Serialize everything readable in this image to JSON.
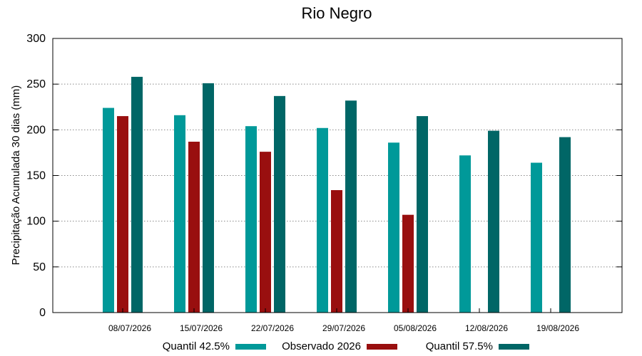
{
  "chart_data": {
    "type": "bar",
    "title": "Rio Negro",
    "xlabel": "",
    "ylabel": "Precipitação Acumulada 30 dias (mm)",
    "ylim": [
      0,
      300
    ],
    "yticks": [
      "0",
      "50",
      "100",
      "150",
      "200",
      "250",
      "300"
    ],
    "categories": [
      "08/07/2026",
      "15/07/2026",
      "22/07/2026",
      "29/07/2026",
      "05/08/2026",
      "12/08/2026",
      "19/08/2026"
    ],
    "grid": "y-dotted",
    "legend_position": "bottom",
    "series": [
      {
        "name": "Quantil 42.5%",
        "color": "#009999",
        "values": [
          224,
          216,
          204,
          202,
          186,
          172,
          164
        ]
      },
      {
        "name": "Observado 2026",
        "color": "#990f0f",
        "values": [
          215,
          187,
          176,
          134,
          107,
          null,
          null
        ]
      },
      {
        "name": "Quantil 57.5%",
        "color": "#006666",
        "values": [
          258,
          251,
          237,
          232,
          215,
          199,
          192
        ]
      }
    ]
  }
}
